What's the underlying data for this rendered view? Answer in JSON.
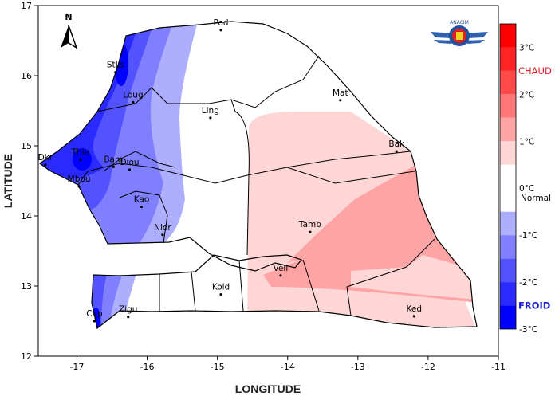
{
  "map": {
    "xlabel": "LONGITUDE",
    "ylabel": "LATITUDE",
    "x_ticks": [
      -17,
      -16,
      -15,
      -14,
      -13,
      -12,
      -11
    ],
    "y_ticks": [
      12,
      13,
      14,
      15,
      16,
      17
    ],
    "x_range": [
      -17.55,
      -11
    ],
    "y_range": [
      12,
      17
    ],
    "north_label": "N",
    "logo_text": "ANACIM",
    "stations": [
      {
        "name": "Pod",
        "lon": -14.95,
        "lat": 16.65
      },
      {
        "name": "StLs",
        "lon": -16.45,
        "lat": 16.05
      },
      {
        "name": "Loug",
        "lon": -16.2,
        "lat": 15.62
      },
      {
        "name": "Ling",
        "lon": -15.1,
        "lat": 15.4
      },
      {
        "name": "Mat",
        "lon": -13.25,
        "lat": 15.65
      },
      {
        "name": "Bak",
        "lon": -12.45,
        "lat": 14.92
      },
      {
        "name": "Thie",
        "lon": -16.95,
        "lat": 14.8
      },
      {
        "name": "Dkr",
        "lon": -17.45,
        "lat": 14.73
      },
      {
        "name": "Bam",
        "lon": -16.48,
        "lat": 14.7
      },
      {
        "name": "Diou",
        "lon": -16.25,
        "lat": 14.66
      },
      {
        "name": "Mbou",
        "lon": -16.97,
        "lat": 14.42
      },
      {
        "name": "Kao",
        "lon": -16.08,
        "lat": 14.13
      },
      {
        "name": "Nior",
        "lon": -15.78,
        "lat": 13.73
      },
      {
        "name": "Tamb",
        "lon": -13.68,
        "lat": 13.77
      },
      {
        "name": "Veli",
        "lon": -14.1,
        "lat": 13.15
      },
      {
        "name": "Kold",
        "lon": -14.95,
        "lat": 12.88
      },
      {
        "name": "Zigu",
        "lon": -16.27,
        "lat": 12.56
      },
      {
        "name": "Ked",
        "lon": -12.2,
        "lat": 12.57
      },
      {
        "name": "Cap",
        "lon": -16.75,
        "lat": 12.5
      }
    ]
  },
  "legend": {
    "bands": [
      {
        "from": 3,
        "to": 3.5,
        "color": "#ff0000"
      },
      {
        "from": 2.5,
        "to": 3,
        "color": "#ff2424"
      },
      {
        "from": 2,
        "to": 2.5,
        "color": "#ff4a4a"
      },
      {
        "from": 1.5,
        "to": 2,
        "color": "#ff7676"
      },
      {
        "from": 1,
        "to": 1.5,
        "color": "#ffa4a4"
      },
      {
        "from": 0.5,
        "to": 1,
        "color": "#ffd6d6"
      },
      {
        "from": -0.5,
        "to": 0.5,
        "color": "#ffffff"
      },
      {
        "from": -1,
        "to": -0.5,
        "color": "#aeaeff"
      },
      {
        "from": -1.5,
        "to": -1,
        "color": "#8080ff"
      },
      {
        "from": -2,
        "to": -1.5,
        "color": "#5252ff"
      },
      {
        "from": -2.5,
        "to": -2,
        "color": "#2a2aff"
      },
      {
        "from": -3,
        "to": -2.5,
        "color": "#0000ff"
      }
    ],
    "ticks": [
      {
        "value": 3,
        "label": "3°C"
      },
      {
        "value": 2,
        "label": "2°C"
      },
      {
        "value": 1,
        "label": "1°C"
      },
      {
        "value": 0,
        "label": "0°C"
      },
      {
        "value": -1,
        "label": "-1°C"
      },
      {
        "value": -2,
        "label": "-2°C"
      },
      {
        "value": -3,
        "label": "-3°C"
      }
    ],
    "warm_label": "CHAUD",
    "warm_color": "#e0202a",
    "normal_label": "Normal",
    "cold_label": "FROID",
    "cold_color": "#2020d0"
  }
}
